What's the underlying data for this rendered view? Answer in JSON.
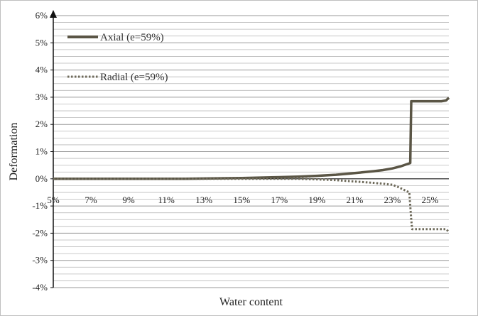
{
  "chart_data": {
    "type": "line",
    "xlabel": "Water content",
    "ylabel": "Deformation",
    "xlim": [
      5,
      26
    ],
    "ylim": [
      -4,
      6
    ],
    "x_ticks": [
      "5%",
      "7%",
      "9%",
      "11%",
      "13%",
      "15%",
      "17%",
      "19%",
      "21%",
      "23%",
      "25%"
    ],
    "y_ticks": [
      "6%",
      "5%",
      "4%",
      "3%",
      "2%",
      "1%",
      "0%",
      "-1%",
      "-2%",
      "-3%",
      "-4%"
    ],
    "grid": "horizontal",
    "legend": "top-left",
    "series": [
      {
        "name": "Axial (e=59%)",
        "style": "solid",
        "color": "#5a5545",
        "x": [
          5,
          12,
          13,
          15,
          17,
          18,
          19,
          20,
          21,
          22,
          22.5,
          23,
          23.4,
          23.7,
          23.95,
          24.0,
          24.05,
          25,
          25.6,
          25.85,
          26
        ],
        "y": [
          0,
          0,
          0.01,
          0.03,
          0.06,
          0.08,
          0.11,
          0.15,
          0.21,
          0.28,
          0.32,
          0.38,
          0.45,
          0.52,
          0.58,
          2.85,
          2.85,
          2.85,
          2.85,
          2.88,
          2.98
        ]
      },
      {
        "name": "Radial (e=59%)",
        "style": "dotted",
        "color": "#6e6a5a",
        "x": [
          5,
          12,
          13,
          15,
          17,
          18,
          19,
          20,
          21,
          22,
          22.5,
          23,
          23.3,
          23.6,
          23.9,
          24.0,
          24.05,
          25,
          25.6,
          25.85,
          26
        ],
        "y": [
          0,
          0,
          0,
          0,
          0,
          0,
          -0.02,
          -0.05,
          -0.1,
          -0.15,
          -0.18,
          -0.22,
          -0.3,
          -0.4,
          -0.5,
          -1.5,
          -1.85,
          -1.85,
          -1.85,
          -1.85,
          -1.95
        ]
      }
    ]
  }
}
